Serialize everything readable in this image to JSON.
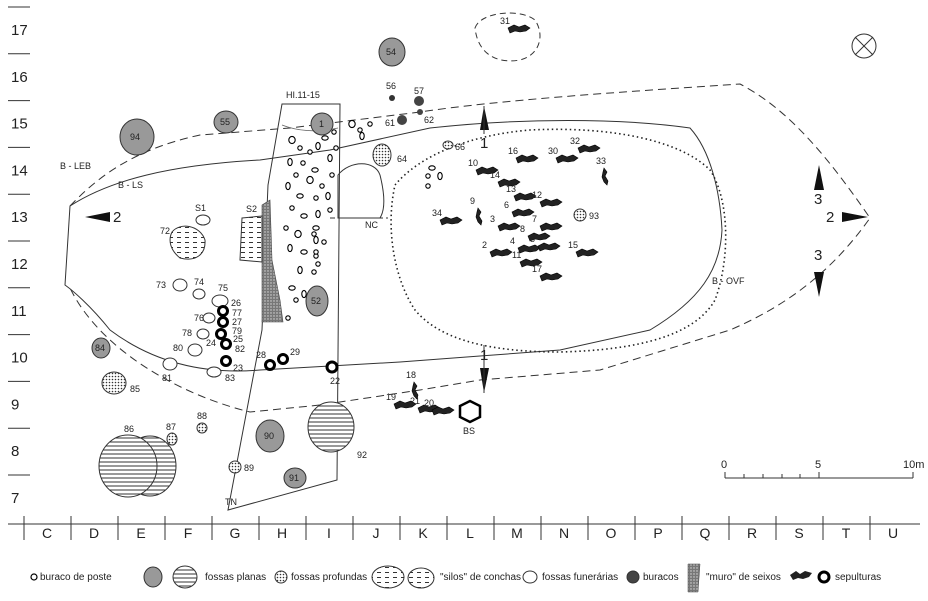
{
  "grid": {
    "rows": [
      "17",
      "16",
      "15",
      "14",
      "13",
      "12",
      "11",
      "10",
      "9",
      "8",
      "7"
    ],
    "columns": [
      "C",
      "D",
      "E",
      "F",
      "G",
      "H",
      "I",
      "J",
      "K",
      "L",
      "M",
      "N",
      "O",
      "P",
      "Q",
      "R",
      "S",
      "T",
      "U"
    ]
  },
  "labels": {
    "trench": "HI.11-15",
    "trench_end": "TN",
    "leb": "B - LEB",
    "ls": "B - LS",
    "ovf": "B - OVF",
    "nc": "NC",
    "s1": "S1",
    "s2": "S2",
    "bs": "BS",
    "section_a_left": "2",
    "section_a_right": "2",
    "section_b_top": "1",
    "section_b_bottom": "1",
    "section_c_top": "3",
    "section_c_bottom": "3"
  },
  "features": {
    "fossas_planas": [
      "94",
      "55",
      "54",
      "1",
      "52",
      "84",
      "90",
      "91"
    ],
    "silos": [
      "72",
      "S2",
      "86",
      "92"
    ],
    "fossas_profundas": [
      "64",
      "85",
      "87",
      "88",
      "89",
      "93"
    ],
    "funerarias": [
      "73",
      "74",
      "75",
      "76",
      "78",
      "80",
      "81",
      "83",
      "S1"
    ],
    "buracos": [
      "56",
      "57",
      "61",
      "62",
      "66"
    ],
    "sepulturas": [
      "26",
      "77",
      "27",
      "79",
      "24",
      "25",
      "82",
      "23",
      "28",
      "29",
      "22"
    ],
    "burials": [
      "31",
      "32",
      "30",
      "33",
      "16",
      "10",
      "14",
      "13",
      "12",
      "9",
      "6",
      "34",
      "3",
      "7",
      "8",
      "4",
      "5",
      "2",
      "11",
      "15",
      "17",
      "18",
      "19",
      "21",
      "20"
    ]
  },
  "scale": {
    "labels": [
      "0",
      "5",
      "10m"
    ]
  },
  "legend": {
    "buraco_de_poste": "buraco de poste",
    "fossas_planas": "fossas planas",
    "fossas_profundas": "fossas profundas",
    "silos": "\"silos\" de conchas",
    "fossas_funerarias": "fossas funerárias",
    "buracos": "buracos",
    "muro": "\"muro\" de seixos",
    "sepulturas": "sepulturas"
  }
}
